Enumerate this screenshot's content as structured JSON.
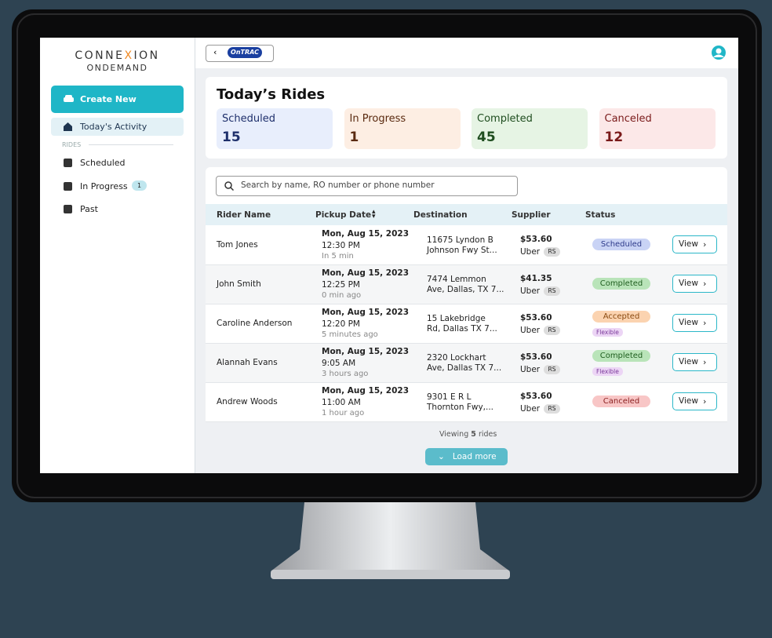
{
  "brand": {
    "parts": [
      "CONNE",
      "X",
      "ION"
    ],
    "line2": "ONDEMAND"
  },
  "header": {
    "logo": [
      "On",
      "TRAC"
    ]
  },
  "sidebar": {
    "create": "Create New",
    "today": "Today's Activity",
    "section": "RIDES",
    "items": [
      {
        "label": "Scheduled"
      },
      {
        "label": "In Progress",
        "badge": 1
      },
      {
        "label": "Past"
      }
    ]
  },
  "summary": {
    "title": "Today’s Rides",
    "cards": [
      {
        "label": "Scheduled",
        "count": 15,
        "bg": "#e8eefc",
        "fg": "#1e2f6b"
      },
      {
        "label": "In Progress",
        "count": 1,
        "bg": "#fdeee3",
        "fg": "#5a2a10"
      },
      {
        "label": "Completed",
        "count": 45,
        "bg": "#e6f4e4",
        "fg": "#1f4d1f"
      },
      {
        "label": "Canceled",
        "count": 12,
        "bg": "#fce8e8",
        "fg": "#7a1a1a"
      }
    ]
  },
  "search": {
    "placeholder": "Search by name, RO number or phone number"
  },
  "table": {
    "columns": [
      "Rider Name",
      "Pickup Date",
      "Destination",
      "Supplier",
      "Status"
    ],
    "rows": [
      {
        "rider": "Tom Jones",
        "date": "Mon, Aug 15, 2023",
        "time": "12:30 PM",
        "relative": "In 5 min",
        "destination": [
          "11675 Lyndon B",
          "Johnson Fwy St..."
        ],
        "price": "$53.60",
        "supplier": "Uber",
        "tag": "RS",
        "status": "Scheduled",
        "status_bg": "#c9d3f5",
        "status_fg": "#2d3a8a",
        "action": "View"
      },
      {
        "rider": "John Smith",
        "date": "Mon, Aug 15, 2023",
        "time": "12:25 PM",
        "relative": "0 min ago",
        "destination": [
          "7474 Lemmon",
          "Ave, Dallas, TX 7..."
        ],
        "price": "$41.35",
        "supplier": "Uber",
        "tag": "RS",
        "status": "Completed",
        "status_bg": "#b9e4b9",
        "status_fg": "#1f5e1f",
        "action": "View"
      },
      {
        "rider": "Caroline Anderson",
        "date": "Mon, Aug 15, 2023",
        "time": "12:20 PM",
        "relative": "5 minutes ago",
        "destination": [
          "15 Lakebridge",
          "Rd, Dallas TX 7..."
        ],
        "price": "$53.60",
        "supplier": "Uber",
        "tag": "RS",
        "status": "Accepted",
        "status_bg": "#fbd3b0",
        "status_fg": "#8a4a10",
        "flex": "Flexible",
        "action": "View"
      },
      {
        "rider": "Alannah Evans",
        "date": "Mon, Aug 15, 2023",
        "time": "9:05 AM",
        "relative": "3 hours ago",
        "destination": [
          "2320 Lockhart",
          "Ave, Dallas TX 7..."
        ],
        "price": "$53.60",
        "supplier": "Uber",
        "tag": "RS",
        "status": "Completed",
        "status_bg": "#b9e4b9",
        "status_fg": "#1f5e1f",
        "flex": "Flexible",
        "action": "View"
      },
      {
        "rider": "Andrew Woods",
        "date": "Mon, Aug 15, 2023",
        "time": "11:00 AM",
        "relative": "1 hour ago",
        "destination": [
          "9301 E R L",
          "Thornton Fwy,..."
        ],
        "price": "$53.60",
        "supplier": "Uber",
        "tag": "RS",
        "status": "Canceled",
        "status_bg": "#f8c6c6",
        "status_fg": "#8a1f1f",
        "action": "View"
      }
    ]
  },
  "footer": {
    "viewing": [
      "Viewing",
      5,
      "rides"
    ],
    "load": "Load more"
  }
}
